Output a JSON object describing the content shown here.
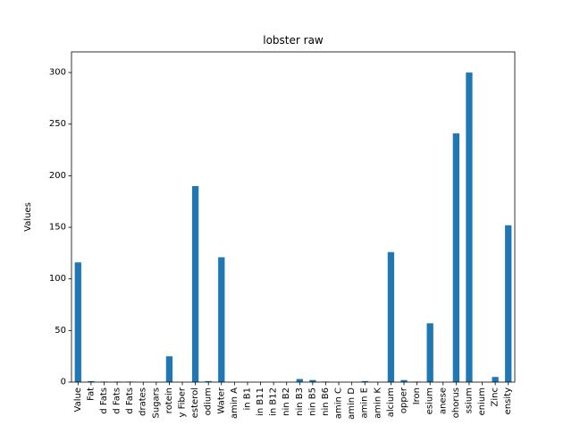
{
  "chart_data": {
    "type": "bar",
    "title": "lobster raw",
    "xlabel": "",
    "ylabel": "Values",
    "ylim": [
      0,
      320
    ],
    "yticks": [
      0,
      50,
      100,
      150,
      200,
      250,
      300
    ],
    "grid": false,
    "legend": "none",
    "bar_color": "#1f77b4",
    "categories": [
      "Value",
      "Fat",
      "d Fats",
      "d Fats",
      "d Fats",
      "drates",
      "Sugars",
      "rotein",
      "y Fiber",
      "esterol",
      "odium",
      "Water",
      "amin A",
      "in B1",
      "in B11",
      "in B12",
      "nin B2",
      "nin B3",
      "nin B5",
      "nin B6",
      "amin C",
      "amin D",
      "amin E",
      "amin K",
      "alcium",
      "opper",
      "Iron",
      "esium",
      "anese",
      "ohorus",
      "ssium",
      "enium",
      "Zinc",
      "ensity"
    ],
    "values": [
      116,
      1,
      0.5,
      0.5,
      0.5,
      0,
      0,
      25,
      0,
      190,
      1,
      121,
      0,
      0,
      0,
      0,
      0,
      3,
      2,
      0.5,
      0,
      0,
      1,
      0,
      126,
      2,
      0.5,
      57,
      0,
      241,
      300,
      0,
      5,
      152
    ]
  }
}
